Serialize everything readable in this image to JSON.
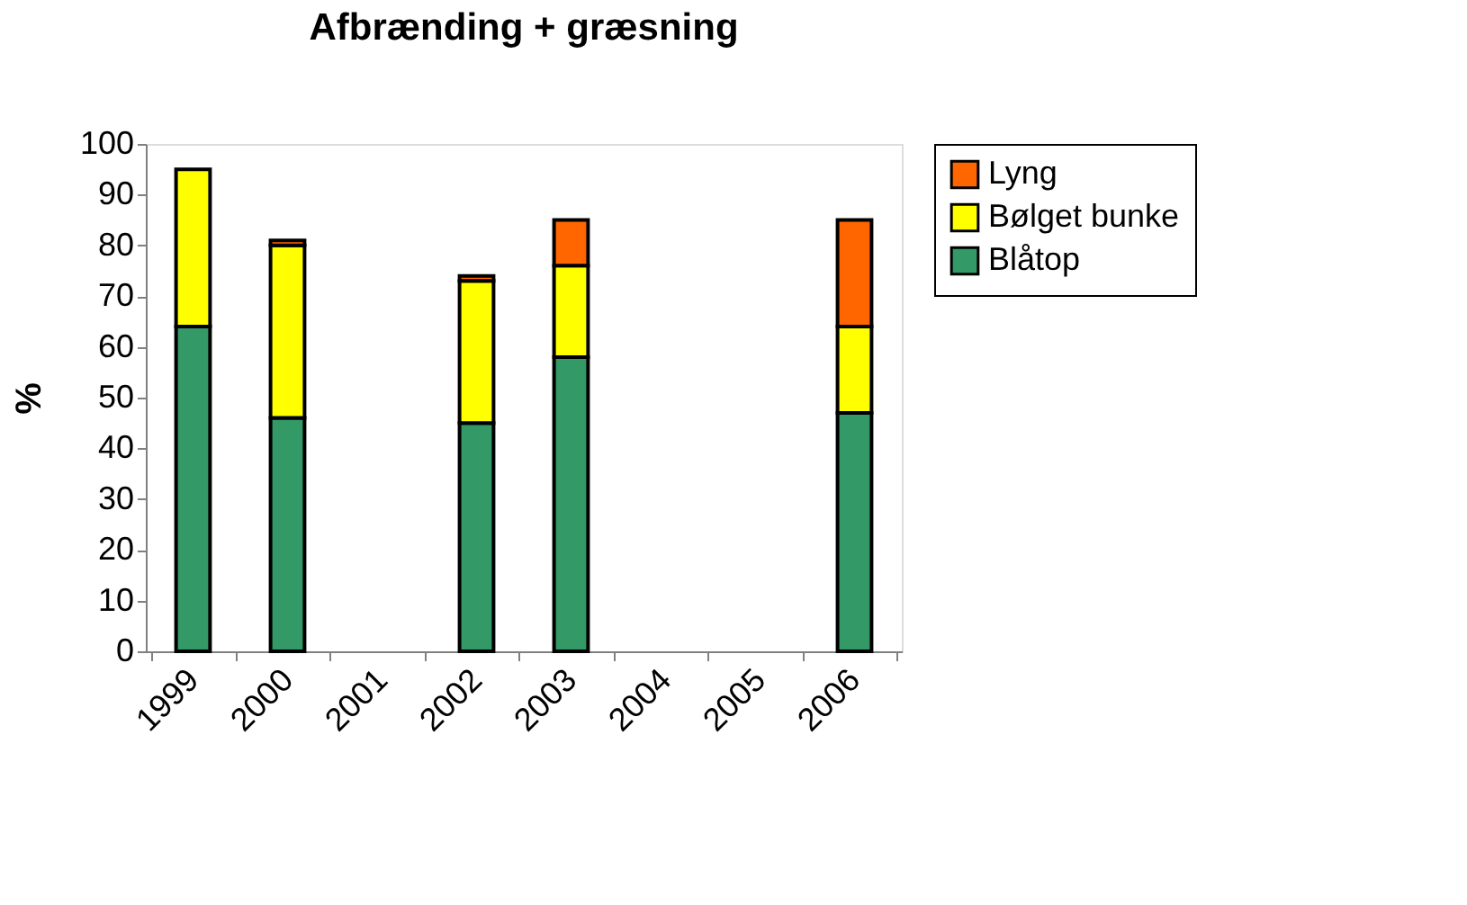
{
  "chart_data": {
    "type": "bar",
    "title": "Afbrænding + græsning",
    "ylabel": "%",
    "categories": [
      "1999",
      "2000",
      "2001",
      "2002",
      "2003",
      "2004",
      "2005",
      "2006"
    ],
    "stacked": true,
    "series": [
      {
        "name": "Blåtop",
        "color": "#339966",
        "values": [
          64,
          46,
          null,
          45,
          58,
          null,
          null,
          47
        ]
      },
      {
        "name": "Bølget bunke",
        "color": "#ffff00",
        "values": [
          31,
          34,
          null,
          28,
          18,
          null,
          null,
          17
        ]
      },
      {
        "name": "Lyng",
        "color": "#ff6600",
        "values": [
          null,
          1,
          null,
          1,
          9,
          null,
          null,
          21
        ]
      }
    ],
    "ylim": [
      0,
      100
    ],
    "yticks": [
      0,
      10,
      20,
      30,
      40,
      50,
      60,
      70,
      80,
      90,
      100
    ],
    "grid": false,
    "legend": "right"
  }
}
